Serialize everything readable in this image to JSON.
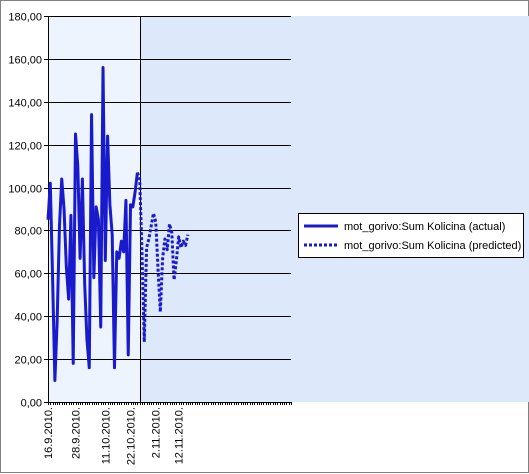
{
  "chart_data": {
    "type": "line",
    "title": "",
    "xlabel": "",
    "ylabel": "",
    "ylim": [
      0,
      180
    ],
    "y_ticks": [
      0,
      20,
      40,
      60,
      80,
      100,
      120,
      140,
      160,
      180
    ],
    "y_tick_labels": [
      "0,00",
      "20,00",
      "40,00",
      "60,00",
      "80,00",
      "100,00",
      "120,00",
      "140,00",
      "160,00",
      "180,00"
    ],
    "x_start_date": "2010-09-16",
    "x_end_date": "2010-12-31",
    "x_tick_labels": [
      "16.9.2010.",
      "28.9.2010.",
      "11.10.2010.",
      "22.10.2010.",
      "2.11.2010.",
      "12.11.2010."
    ],
    "x_tick_dates": [
      "2010-09-16",
      "2010-09-28",
      "2010-10-11",
      "2010-10-22",
      "2010-11-02",
      "2010-11-12"
    ],
    "forecast_start_date": "2010-10-26",
    "grid": true,
    "legend_position": "right",
    "colors": {
      "actual": "#1a1acd",
      "predicted": "#1a1acd",
      "history_bg": "#eef4fd",
      "forecast_bg": "#dde8fb",
      "divider": "#000000",
      "grid": "#000000"
    },
    "series": [
      {
        "name": "mot_gorivo:Sum Kolicina (actual)",
        "style": "solid",
        "points": [
          [
            "2010-09-16",
            85
          ],
          [
            "2010-09-17",
            102
          ],
          [
            "2010-09-18",
            58
          ],
          [
            "2010-09-19",
            10
          ],
          [
            "2010-09-20",
            38
          ],
          [
            "2010-09-21",
            82
          ],
          [
            "2010-09-22",
            104
          ],
          [
            "2010-09-23",
            90
          ],
          [
            "2010-09-24",
            63
          ],
          [
            "2010-09-25",
            48
          ],
          [
            "2010-09-26",
            87
          ],
          [
            "2010-09-27",
            18
          ],
          [
            "2010-09-28",
            125
          ],
          [
            "2010-09-29",
            110
          ],
          [
            "2010-09-30",
            67
          ],
          [
            "2010-10-01",
            104
          ],
          [
            "2010-10-02",
            55
          ],
          [
            "2010-10-03",
            29
          ],
          [
            "2010-10-04",
            16
          ],
          [
            "2010-10-05",
            134
          ],
          [
            "2010-10-06",
            58
          ],
          [
            "2010-10-07",
            91
          ],
          [
            "2010-10-08",
            85
          ],
          [
            "2010-10-09",
            35
          ],
          [
            "2010-10-10",
            156
          ],
          [
            "2010-10-11",
            66
          ],
          [
            "2010-10-12",
            124
          ],
          [
            "2010-10-13",
            92
          ],
          [
            "2010-10-14",
            78
          ],
          [
            "2010-10-15",
            16
          ],
          [
            "2010-10-16",
            70
          ],
          [
            "2010-10-17",
            67
          ],
          [
            "2010-10-18",
            75
          ],
          [
            "2010-10-19",
            70
          ],
          [
            "2010-10-20",
            94
          ],
          [
            "2010-10-21",
            22
          ],
          [
            "2010-10-22",
            92
          ],
          [
            "2010-10-23",
            91
          ],
          [
            "2010-10-24",
            98
          ],
          [
            "2010-10-25",
            107
          ]
        ]
      },
      {
        "name": "mot_gorivo:Sum Kolicina (predicted)",
        "style": "dotted",
        "points": [
          [
            "2010-10-25",
            107
          ],
          [
            "2010-10-26",
            104
          ],
          [
            "2010-10-27",
            70
          ],
          [
            "2010-10-28",
            28
          ],
          [
            "2010-10-29",
            72
          ],
          [
            "2010-10-30",
            76
          ],
          [
            "2010-10-31",
            82
          ],
          [
            "2010-11-01",
            88
          ],
          [
            "2010-11-02",
            84
          ],
          [
            "2010-11-03",
            62
          ],
          [
            "2010-11-04",
            42
          ],
          [
            "2010-11-05",
            67
          ],
          [
            "2010-11-06",
            76
          ],
          [
            "2010-11-07",
            71
          ],
          [
            "2010-11-08",
            83
          ],
          [
            "2010-11-09",
            79
          ],
          [
            "2010-11-10",
            57
          ],
          [
            "2010-11-11",
            66
          ],
          [
            "2010-11-12",
            77
          ],
          [
            "2010-11-13",
            72
          ],
          [
            "2010-11-14",
            75
          ],
          [
            "2010-11-15",
            73
          ],
          [
            "2010-11-16",
            78
          ]
        ]
      }
    ]
  }
}
